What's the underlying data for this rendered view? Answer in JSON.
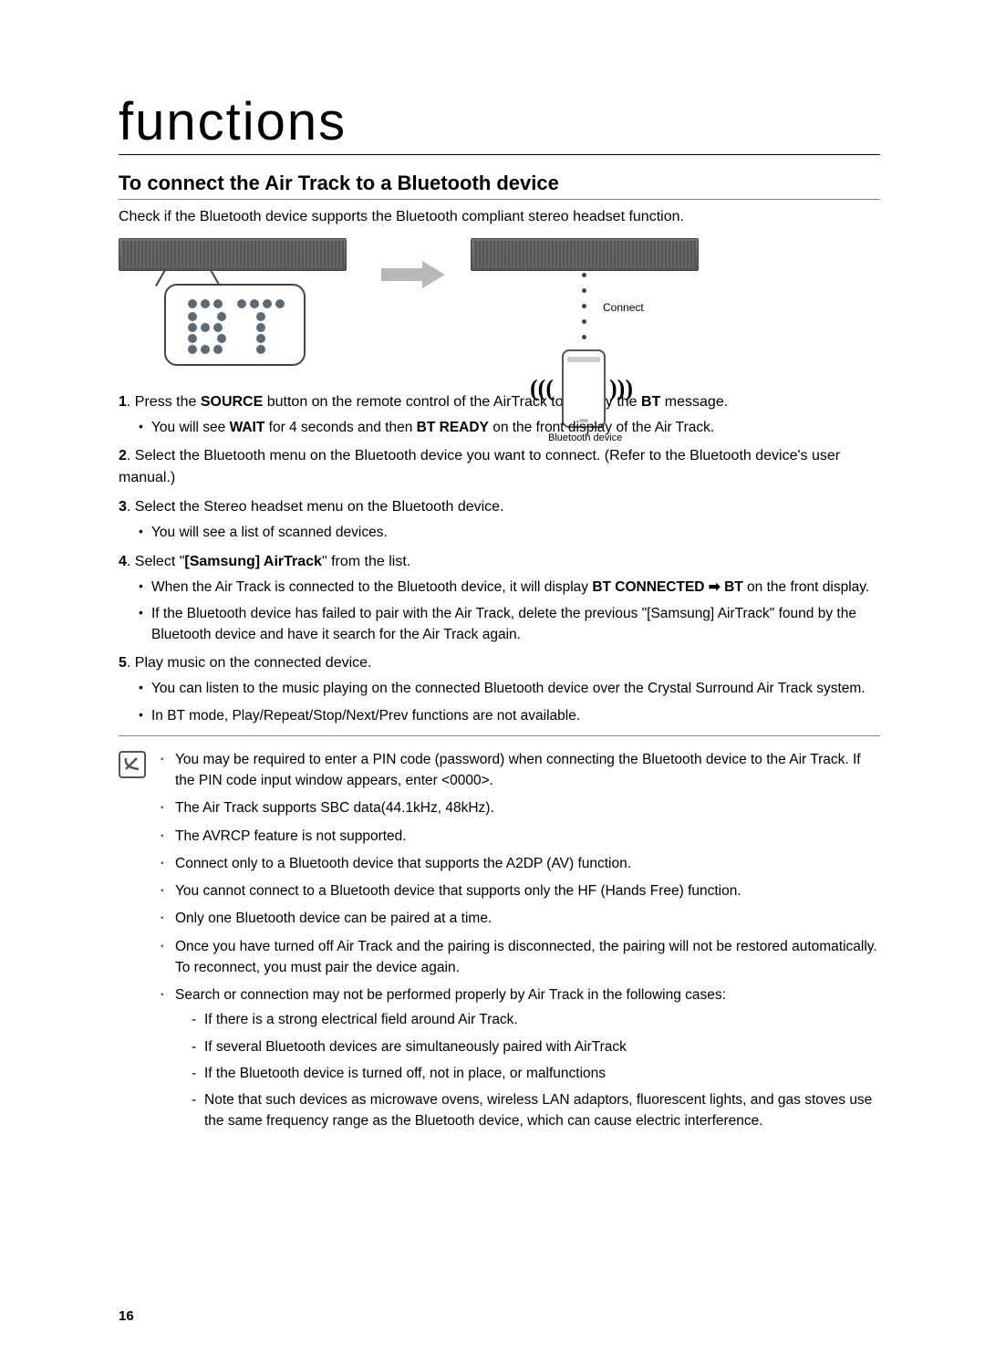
{
  "title": "functions",
  "section_title": "To connect the Air Track to a Bluetooth device",
  "intro": "Check if the Bluetooth device supports the Bluetooth compliant stereo headset function.",
  "diagram": {
    "bt_label": "BT",
    "connect_label": "Connect",
    "bt_device_label": "Bluetooth device",
    "waves_left": "(((",
    "waves_right": ")))"
  },
  "steps": [
    {
      "num": "1",
      "text_before": ". Press the ",
      "bold1": "SOURCE",
      "text_mid": " button on the remote control of the AirTrack to display the ",
      "bold2": "BT",
      "text_after": " message.",
      "sub": [
        {
          "text_before": "You will see ",
          "bold1": "WAIT",
          "text_mid": " for 4 seconds and then ",
          "bold2": "BT READY",
          "text_after": " on the front display of the Air Track."
        }
      ]
    },
    {
      "num": "2",
      "plain": ". Select the Bluetooth menu on the Bluetooth device you want to connect. (Refer to the Bluetooth device's user manual.)"
    },
    {
      "num": "3",
      "plain": ". Select the Stereo headset menu on the Bluetooth device.",
      "sub": [
        {
          "plain": "You will see a list of scanned devices."
        }
      ]
    },
    {
      "num": "4",
      "text_before": ". Select \"",
      "bold1": "[Samsung] AirTrack",
      "text_after": "\" from the list.",
      "sub": [
        {
          "text_before": "When the Air Track is connected to the Bluetooth device, it will display ",
          "bold1": "BT CONNECTED ➡ BT",
          "text_after": " on the front display."
        },
        {
          "plain": "If the Bluetooth device has failed to pair with the Air Track, delete the previous \"[Samsung] AirTrack\" found by the Bluetooth device and have it search for the Air Track again."
        }
      ]
    },
    {
      "num": "5",
      "plain": ". Play music on the connected device.",
      "sub": [
        {
          "plain": "You can listen to the music playing on the connected Bluetooth device over the Crystal Surround Air Track system."
        },
        {
          "plain": "In BT mode, Play/Repeat/Stop/Next/Prev functions are not available."
        }
      ]
    }
  ],
  "notes": [
    "You may be required to enter a PIN code (password) when connecting the Bluetooth device to the Air Track. If the PIN code input window appears, enter <0000>.",
    "The Air Track supports SBC data(44.1kHz, 48kHz).",
    "The AVRCP feature is not supported.",
    "Connect only to a Bluetooth device that supports the A2DP (AV) function.",
    "You cannot connect to a Bluetooth device that supports only the HF (Hands Free) function.",
    "Only one Bluetooth device can be paired at a time.",
    "Once you have turned off Air Track and the pairing is disconnected, the pairing will not be restored automatically. To reconnect, you must pair the device again.",
    "Search or connection may not be performed properly by Air Track in the following cases:"
  ],
  "note_dashes": [
    "If there is a strong electrical field around Air Track.",
    "If several Bluetooth devices are simultaneously paired with AirTrack",
    "If the Bluetooth device is turned off, not in place, or malfunctions",
    "Note that such devices as microwave ovens, wireless LAN adaptors, fluorescent lights, and gas stoves use the same frequency range as the Bluetooth device, which can cause electric interference."
  ],
  "page_number": "16"
}
